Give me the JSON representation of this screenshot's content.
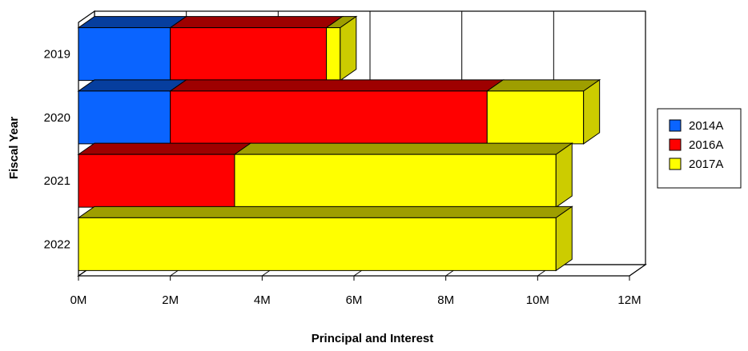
{
  "chart_data": {
    "type": "bar",
    "orientation": "horizontal",
    "stacked": true,
    "three_d": true,
    "categories": [
      "2019",
      "2020",
      "2021",
      "2022"
    ],
    "series": [
      {
        "name": "2014A",
        "color": "#0a64ff",
        "values": [
          2.0,
          2.0,
          0,
          0
        ]
      },
      {
        "name": "2016A",
        "color": "#ff0000",
        "values": [
          3.4,
          6.9,
          3.4,
          0
        ]
      },
      {
        "name": "2017A",
        "color": "#ffff00",
        "values": [
          0.3,
          2.1,
          7.0,
          10.4
        ]
      }
    ],
    "x_ticks": [
      "0M",
      "2M",
      "4M",
      "6M",
      "8M",
      "10M",
      "12M"
    ],
    "xlim": [
      0,
      12
    ],
    "xlabel": "Principal and Interest",
    "ylabel": "Fiscal Year",
    "grid": true,
    "legend_position": "right"
  }
}
